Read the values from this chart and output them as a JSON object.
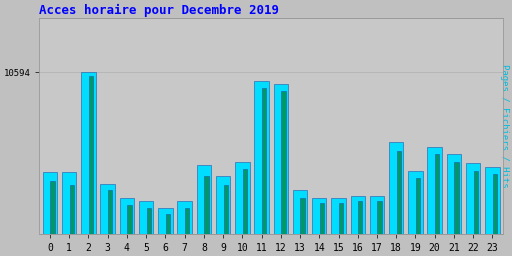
{
  "title": "Acces horaire pour Decembre 2019",
  "title_color": "#0000ff",
  "ylabel_right": "Pages / Fichiers / Hits",
  "ylabel_right_color": "#00bbdd",
  "background_color": "#c0c0c0",
  "plot_background": "#c8c8c8",
  "bar_color_cyan": "#00ddff",
  "bar_color_teal": "#009966",
  "bar_edge_color": "#2255aa",
  "hours": [
    0,
    1,
    2,
    3,
    4,
    5,
    6,
    7,
    8,
    9,
    10,
    11,
    12,
    13,
    14,
    15,
    16,
    17,
    18,
    19,
    20,
    21,
    22,
    23
  ],
  "ytick_label": "10594",
  "ymin": 8800,
  "ymax": 11200,
  "pages": [
    9480,
    9480,
    10594,
    9350,
    9200,
    9160,
    9080,
    9160,
    9560,
    9440,
    9600,
    10500,
    10460,
    9280,
    9200,
    9200,
    9220,
    9220,
    9820,
    9500,
    9760,
    9680,
    9580,
    9540
  ],
  "fichiers": [
    9380,
    9340,
    10550,
    9280,
    9120,
    9080,
    9020,
    9080,
    9440,
    9340,
    9520,
    10420,
    10380,
    9200,
    9140,
    9140,
    9160,
    9160,
    9720,
    9420,
    9680,
    9600,
    9500,
    9460
  ]
}
